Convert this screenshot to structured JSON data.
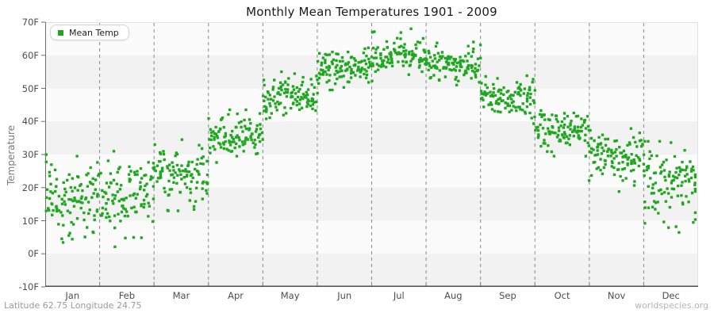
{
  "footer": {
    "left": "Latitude 62.75 Longitude 24.75",
    "right": "worldspecies.org"
  },
  "chart_data": {
    "type": "scatter",
    "title": "Monthly Mean Temperatures 1901 - 2009",
    "xlabel": "",
    "ylabel": "Temperature",
    "unit": "F",
    "categories": [
      "Jan",
      "Feb",
      "Mar",
      "Apr",
      "May",
      "Jun",
      "Jul",
      "Aug",
      "Sep",
      "Oct",
      "Nov",
      "Dec"
    ],
    "y_ticks": [
      "70F",
      "60F",
      "50F",
      "40F",
      "30F",
      "20F",
      "10F",
      "0F",
      "-10F"
    ],
    "ylim": [
      -10,
      70
    ],
    "years_range": [
      1901,
      2009
    ],
    "points_per_month": 109,
    "legend": {
      "label": "Mean Temp",
      "position": "top-left"
    },
    "marker_color": "#1fa81f",
    "grid": {
      "band_colors": [
        "#fbfbfb",
        "#f2f2f2"
      ],
      "vline_style": "dashed",
      "vline_color": "#888888",
      "border_light": "#e3e3e3",
      "axis_color": "#4d4d4d",
      "tick_color": "#8a8a8a"
    },
    "monthly_distribution_f": [
      {
        "month": "Jan",
        "mean": 16.5,
        "sd": 5.6,
        "min": -5,
        "max": 30,
        "low_tail": 0.05
      },
      {
        "month": "Feb",
        "mean": 17.0,
        "sd": 5.6,
        "min": -2,
        "max": 31,
        "low_tail": 0.04
      },
      {
        "month": "Mar",
        "mean": 24.5,
        "sd": 4.3,
        "min": 13,
        "max": 34.5,
        "low_tail": 0.015
      },
      {
        "month": "Apr",
        "mean": 35.8,
        "sd": 3.2,
        "min": 27.5,
        "max": 43.5,
        "low_tail": 0
      },
      {
        "month": "May",
        "mean": 47.5,
        "sd": 3.0,
        "min": 40,
        "max": 55,
        "low_tail": 0
      },
      {
        "month": "Jun",
        "mean": 56.5,
        "sd": 2.7,
        "min": 49.5,
        "max": 64,
        "low_tail": 0
      },
      {
        "month": "Jul",
        "mean": 60.5,
        "sd": 2.9,
        "min": 52.5,
        "max": 68,
        "low_tail": 0
      },
      {
        "month": "Aug",
        "mean": 57.0,
        "sd": 2.5,
        "min": 51,
        "max": 64,
        "low_tail": 0
      },
      {
        "month": "Sep",
        "mean": 47.5,
        "sd": 2.8,
        "min": 41,
        "max": 55.5,
        "low_tail": 0
      },
      {
        "month": "Oct",
        "mean": 38.0,
        "sd": 3.1,
        "min": 29.5,
        "max": 46.5,
        "low_tail": 0.01
      },
      {
        "month": "Nov",
        "mean": 29.5,
        "sd": 3.8,
        "min": 15,
        "max": 38,
        "low_tail": 0.02
      },
      {
        "month": "Dec",
        "mean": 23.0,
        "sd": 5.3,
        "min": 3,
        "max": 34,
        "low_tail": 0.07
      }
    ]
  }
}
